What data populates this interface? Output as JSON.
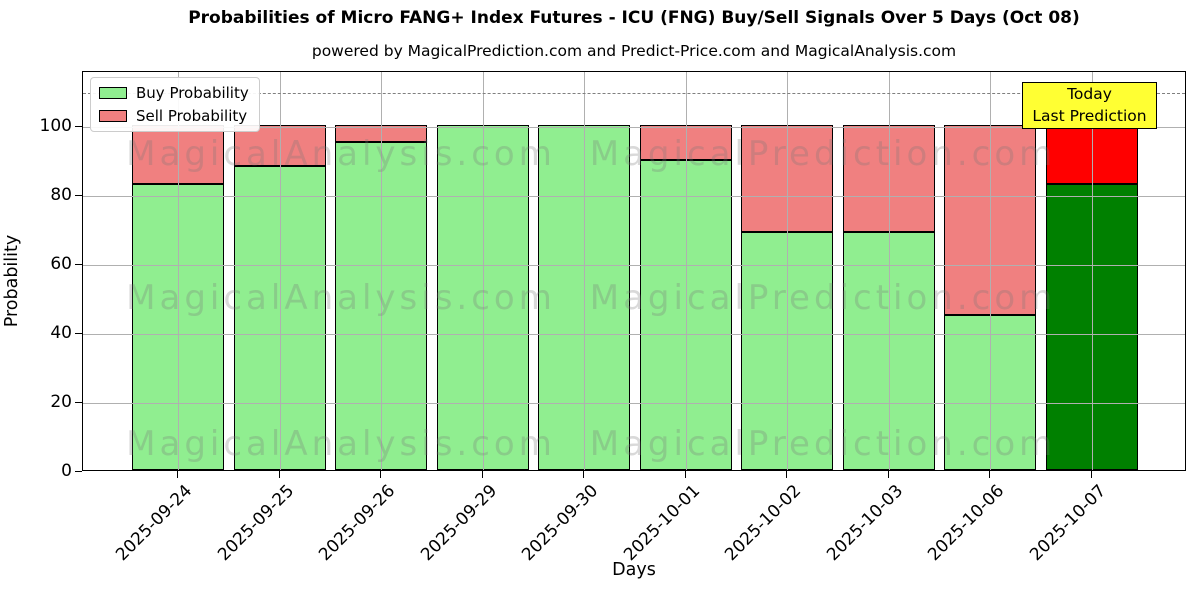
{
  "header": {
    "title": "Probabilities of Micro FANG+ Index Futures - ICU (FNG) Buy/Sell Signals Over 5 Days (Oct 08)",
    "subtitle": "powered by MagicalPrediction.com and Predict-Price.com and MagicalAnalysis.com"
  },
  "chart_data": {
    "type": "bar",
    "stacked": true,
    "title": "Probabilities of Micro FANG+ Index Futures - ICU (FNG) Buy/Sell Signals Over 5 Days (Oct 08)",
    "subtitle": "powered by MagicalPrediction.com and Predict-Price.com and MagicalAnalysis.com",
    "xlabel": "Days",
    "ylabel": "Probability",
    "categories": [
      "2025-09-24",
      "2025-09-25",
      "2025-09-26",
      "2025-09-29",
      "2025-09-30",
      "2025-10-01",
      "2025-10-02",
      "2025-10-03",
      "2025-10-06",
      "2025-10-07"
    ],
    "series": [
      {
        "name": "Buy Probability",
        "color": "#90EE90",
        "values": [
          83,
          88,
          95,
          100,
          100,
          90,
          69,
          69,
          45,
          83
        ]
      },
      {
        "name": "Sell Probability",
        "color": "#F08080",
        "values": [
          17,
          12,
          5,
          0,
          0,
          10,
          31,
          31,
          55,
          17
        ]
      }
    ],
    "today_bar": {
      "category": "2025-10-07",
      "index": 9,
      "buy_color": "#008000",
      "sell_color": "#FF0000"
    },
    "ylim": [
      0,
      115.9
    ],
    "yticks": [
      0,
      20,
      40,
      60,
      80,
      100
    ],
    "dashed_line_y": 110,
    "grid": true,
    "grid_color": "#b0b0b0",
    "bar_edge_color": "#000000",
    "legend_position": "upper left"
  },
  "legend": {
    "items": [
      {
        "label": "Buy Probability",
        "color": "#90EE90"
      },
      {
        "label": "Sell Probability",
        "color": "#F08080"
      }
    ]
  },
  "annotation": {
    "line1": "Today",
    "line2": "Last Prediction",
    "bg_color": "#FFFF33"
  },
  "watermarks": {
    "left_text": "MagicalAnalysis.com",
    "right_text": "MagicalPrediction.com",
    "rows": 3
  },
  "axes": {
    "xlabel": "Days",
    "ylabel": "Probability"
  }
}
